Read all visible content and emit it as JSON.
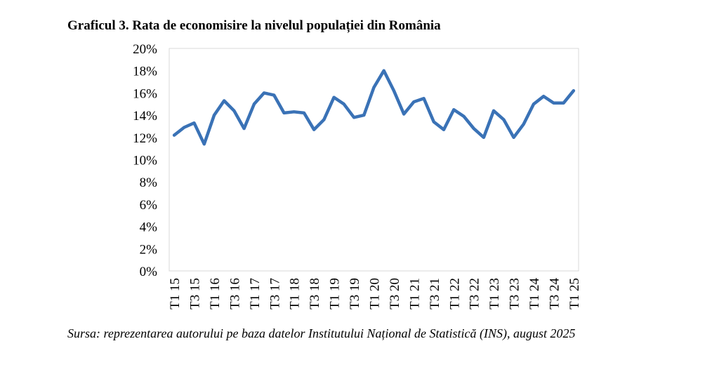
{
  "title": "Graficul 3. Rata de economisire la nivelul populației din România",
  "source": "Sursa: reprezentarea autorului pe baza datelor Institutului Național de Statistică (INS), august 2025",
  "chart_data": {
    "type": "line",
    "title": "Graficul 3. Rata de economisire la nivelul populației din România",
    "xlabel": "",
    "ylabel": "",
    "ylim": [
      0,
      20
    ],
    "y_ticks": [
      "0%",
      "2%",
      "4%",
      "6%",
      "8%",
      "10%",
      "12%",
      "14%",
      "16%",
      "18%",
      "20%"
    ],
    "x_tick_labels": [
      "T1 15",
      "T3 15",
      "T1 16",
      "T3 16",
      "T1 17",
      "T3 17",
      "T1 18",
      "T3 18",
      "T1 19",
      "T3 19",
      "T1 20",
      "T3 20",
      "T1 21",
      "T3 21",
      "T1 22",
      "T3 22",
      "T1 23",
      "T3 23",
      "T1 24",
      "T3 24",
      "T1 25"
    ],
    "grid": false,
    "legend": "none",
    "line_color": "#3a72b6",
    "categories": [
      "T1 15",
      "T2 15",
      "T3 15",
      "T4 15",
      "T1 16",
      "T2 16",
      "T3 16",
      "T4 16",
      "T1 17",
      "T2 17",
      "T3 17",
      "T4 17",
      "T1 18",
      "T2 18",
      "T3 18",
      "T4 18",
      "T1 19",
      "T2 19",
      "T3 19",
      "T4 19",
      "T1 20",
      "T2 20",
      "T3 20",
      "T4 20",
      "T1 21",
      "T2 21",
      "T3 21",
      "T4 21",
      "T1 22",
      "T2 22",
      "T3 22",
      "T4 22",
      "T1 23",
      "T2 23",
      "T3 23",
      "T4 23",
      "T1 24",
      "T2 24",
      "T3 24",
      "T4 24",
      "T1 25"
    ],
    "series": [
      {
        "values": [
          12.2,
          12.9,
          13.3,
          11.4,
          14.0,
          15.3,
          14.4,
          12.8,
          15.0,
          16.0,
          15.8,
          14.2,
          14.3,
          14.2,
          12.7,
          13.6,
          15.6,
          15.0,
          13.8,
          14.0,
          16.5,
          18.0,
          16.2,
          14.1,
          15.2,
          15.5,
          13.4,
          12.7,
          14.5,
          13.9,
          12.8,
          12.0,
          14.4,
          13.6,
          12.0,
          13.2,
          15.0,
          15.7,
          15.1,
          15.1,
          16.2
        ]
      }
    ]
  }
}
